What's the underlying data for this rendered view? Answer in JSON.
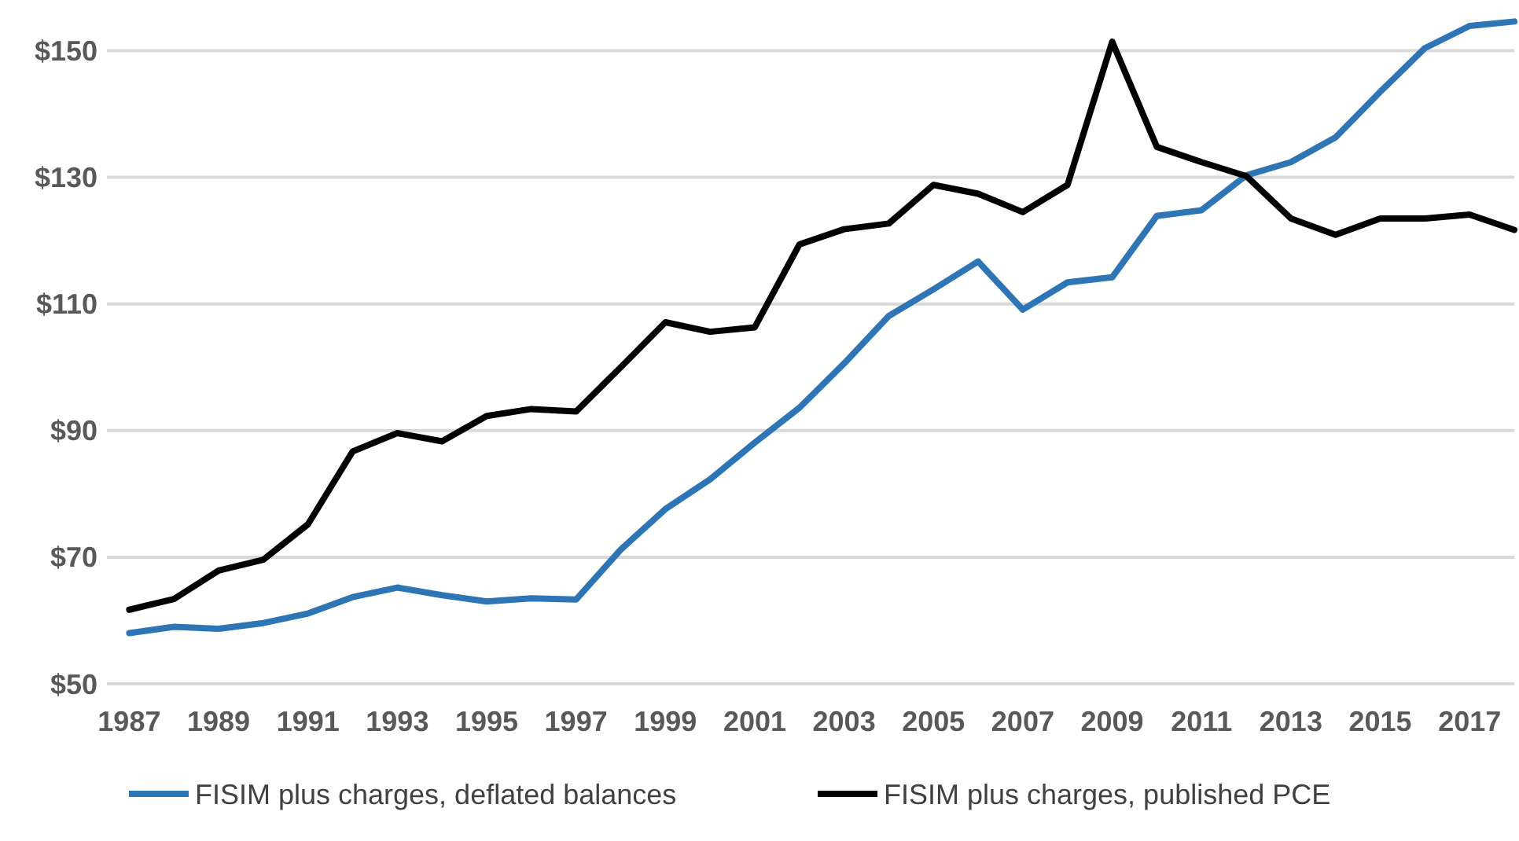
{
  "chart_data": {
    "type": "line",
    "x": [
      1987,
      1988,
      1989,
      1990,
      1991,
      1992,
      1993,
      1994,
      1995,
      1996,
      1997,
      1998,
      1999,
      2000,
      2001,
      2002,
      2003,
      2004,
      2005,
      2006,
      2007,
      2008,
      2009,
      2010,
      2011,
      2012,
      2013,
      2014,
      2015,
      2016,
      2017,
      2018
    ],
    "series": [
      {
        "name": "FISIM plus charges, deflated balances",
        "color": "#2e75b6",
        "values": [
          58.0,
          59.0,
          58.7,
          59.6,
          61.1,
          63.7,
          65.2,
          64.0,
          63.0,
          63.5,
          63.3,
          71.2,
          77.6,
          82.3,
          88.1,
          93.6,
          100.6,
          108.1,
          112.3,
          116.7,
          109.1,
          113.4,
          114.2,
          123.9,
          124.8,
          130.3,
          132.4,
          136.3,
          143.5,
          150.4,
          153.9,
          154.6
        ]
      },
      {
        "name": "FISIM plus charges, published PCE",
        "color": "#000000",
        "values": [
          61.7,
          63.4,
          67.9,
          69.6,
          75.2,
          86.7,
          89.6,
          88.3,
          92.3,
          93.4,
          93.0,
          100.0,
          107.1,
          105.6,
          106.3,
          119.4,
          121.8,
          122.7,
          128.8,
          127.4,
          124.5,
          128.8,
          151.4,
          134.8,
          132.4,
          130.2,
          123.5,
          120.9,
          123.5,
          123.5,
          124.1,
          121.7
        ]
      }
    ],
    "xlim": [
      1986.5,
      2018
    ],
    "xticks": [
      1987,
      1989,
      1991,
      1993,
      1995,
      1997,
      1999,
      2001,
      2003,
      2005,
      2007,
      2009,
      2011,
      2013,
      2015,
      2017
    ],
    "ylim": [
      50,
      158
    ],
    "yticks": [
      {
        "value": 50,
        "label": "$50"
      },
      {
        "value": 70,
        "label": "$70"
      },
      {
        "value": 90,
        "label": "$90"
      },
      {
        "value": 110,
        "label": "$110"
      },
      {
        "value": 130,
        "label": "$130"
      },
      {
        "value": 150,
        "label": "$150"
      }
    ],
    "grid": "y",
    "legend": "bottom",
    "marker": "none",
    "line_style": "solid"
  }
}
